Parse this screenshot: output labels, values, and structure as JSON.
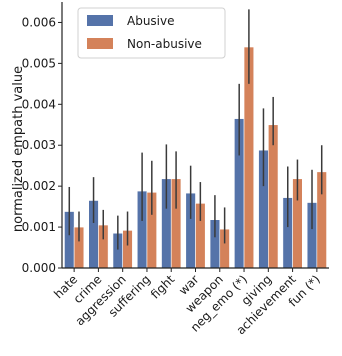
{
  "chart_data": {
    "type": "bar",
    "title": "",
    "xlabel": "",
    "ylabel": "normalized empath value",
    "ylim": [
      0,
      0.0065
    ],
    "yticks": [
      "0.000",
      "0.001",
      "0.002",
      "0.003",
      "0.004",
      "0.005",
      "0.006"
    ],
    "grid": false,
    "legend_position": "top-left",
    "categories": [
      "hate",
      "crime",
      "aggression",
      "suffering",
      "fight",
      "war",
      "weapon",
      "neg_emo (*)",
      "giving",
      "achievement",
      "fun (*)"
    ],
    "series": [
      {
        "name": "Abusive",
        "color": "#5573a9",
        "values": [
          0.00138,
          0.00165,
          0.00085,
          0.00188,
          0.00218,
          0.00183,
          0.00118,
          0.00365,
          0.00288,
          0.00172,
          0.0016
        ],
        "err_low": [
          0.0008,
          0.0011,
          0.00045,
          0.00115,
          0.00145,
          0.0012,
          0.00075,
          0.00275,
          0.002,
          0.001,
          0.00095
        ],
        "err_high": [
          0.00198,
          0.00222,
          0.00128,
          0.00282,
          0.00302,
          0.0025,
          0.00178,
          0.0045,
          0.0039,
          0.00248,
          0.0024
        ]
      },
      {
        "name": "Non-abusive",
        "color": "#d4825a",
        "values": [
          0.001,
          0.00105,
          0.00092,
          0.00185,
          0.00218,
          0.00158,
          0.00095,
          0.0054,
          0.0035,
          0.00218,
          0.00235
        ],
        "err_low": [
          0.00065,
          0.0007,
          0.00055,
          0.0013,
          0.00145,
          0.00115,
          0.0006,
          0.0045,
          0.003,
          0.00165,
          0.0018
        ],
        "err_high": [
          0.00138,
          0.00142,
          0.00138,
          0.00262,
          0.00285,
          0.0021,
          0.00148,
          0.00632,
          0.00418,
          0.00265,
          0.003
        ]
      }
    ]
  }
}
